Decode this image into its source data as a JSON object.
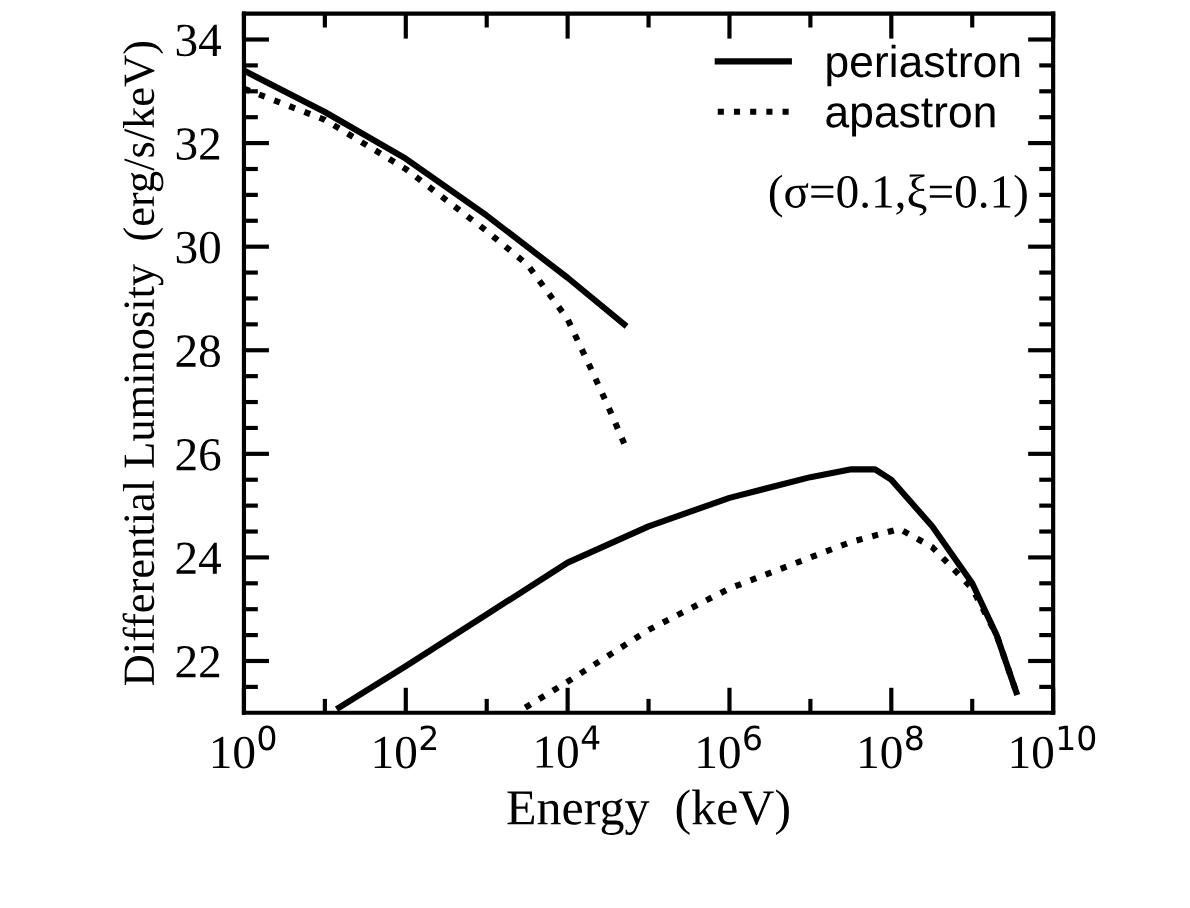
{
  "chart_data": {
    "type": "line",
    "xlabel": "Energy  (keV)",
    "ylabel": "Differential Luminosity  (erg/s/keV)",
    "log": "x",
    "xlim": [
      1,
      10000000000.0
    ],
    "ylim": [
      21,
      34.5
    ],
    "xticks": [
      {
        "value": 1,
        "label": "10$^{0}$"
      },
      {
        "value": 10,
        "label": null
      },
      {
        "value": 100,
        "label": "10$^{2}$"
      },
      {
        "value": 1000,
        "label": null
      },
      {
        "value": 10000,
        "label": "10$^{4}$"
      },
      {
        "value": 100000,
        "label": null
      },
      {
        "value": 1000000,
        "label": "10$^{6}$"
      },
      {
        "value": 10000000,
        "label": null
      },
      {
        "value": 100000000,
        "label": "10$^{8}$"
      },
      {
        "value": 1000000000,
        "label": null
      },
      {
        "value": 10000000000,
        "label": "10$^{10}$"
      }
    ],
    "yticks": [
      {
        "value": 21.5,
        "label": null
      },
      22,
      {
        "value": 22.5,
        "label": null
      },
      {
        "value": 23,
        "label": null
      },
      {
        "value": 23.5,
        "label": null
      },
      24,
      {
        "value": 24.5,
        "label": null
      },
      {
        "value": 25,
        "label": null
      },
      {
        "value": 25.5,
        "label": null
      },
      26,
      {
        "value": 26.5,
        "label": null
      },
      {
        "value": 27,
        "label": null
      },
      {
        "value": 27.5,
        "label": null
      },
      28,
      {
        "value": 28.5,
        "label": null
      },
      {
        "value": 29,
        "label": null
      },
      {
        "value": 29.5,
        "label": null
      },
      30,
      {
        "value": 30.5,
        "label": null
      },
      {
        "value": 31,
        "label": null
      },
      {
        "value": 31.5,
        "label": null
      },
      32,
      {
        "value": 32.5,
        "label": null
      },
      {
        "value": 33,
        "label": null
      },
      {
        "value": 33.5,
        "label": null
      },
      34
    ],
    "grid": false,
    "legend": "top right",
    "marker": "none",
    "annotations": [
      "(σ=0.1,ξ=0.1)"
    ],
    "series": [
      {
        "name": "periastron",
        "color": "#000000",
        "line_style": "solid",
        "x": [
          1,
          10,
          100,
          1000,
          10000,
          50000.0,
          null,
          15,
          100,
          1000,
          10000,
          100000,
          1000000,
          10000000,
          32000000.0,
          63000000.0,
          100000000.0,
          320000000.0,
          1000000000.0,
          2000000000.0,
          3500000000.0
        ],
        "values": [
          33.4,
          32.6,
          31.7,
          30.6,
          29.4,
          28.5,
          null,
          21.1,
          21.9,
          22.9,
          23.9,
          24.6,
          25.15,
          25.55,
          25.7,
          25.7,
          25.5,
          24.6,
          23.5,
          22.5,
          21.4
        ]
      },
      {
        "name": "apastron",
        "color": "#000000",
        "line_style": "dotted",
        "x": [
          1,
          10,
          100,
          1000,
          3200,
          10000,
          20000.0,
          32000.0,
          50000.0,
          null,
          3000,
          10000,
          100000,
          1000000,
          10000000,
          32000000.0,
          126000000.0,
          320000000.0,
          1000000000.0,
          2000000000.0,
          3500000000.0
        ],
        "values": [
          33.05,
          32.45,
          31.5,
          30.3,
          29.65,
          28.6,
          27.6,
          26.9,
          26.2,
          null,
          21.1,
          21.6,
          22.6,
          23.4,
          24.0,
          24.3,
          24.55,
          24.2,
          23.4,
          22.5,
          21.4
        ]
      }
    ]
  }
}
